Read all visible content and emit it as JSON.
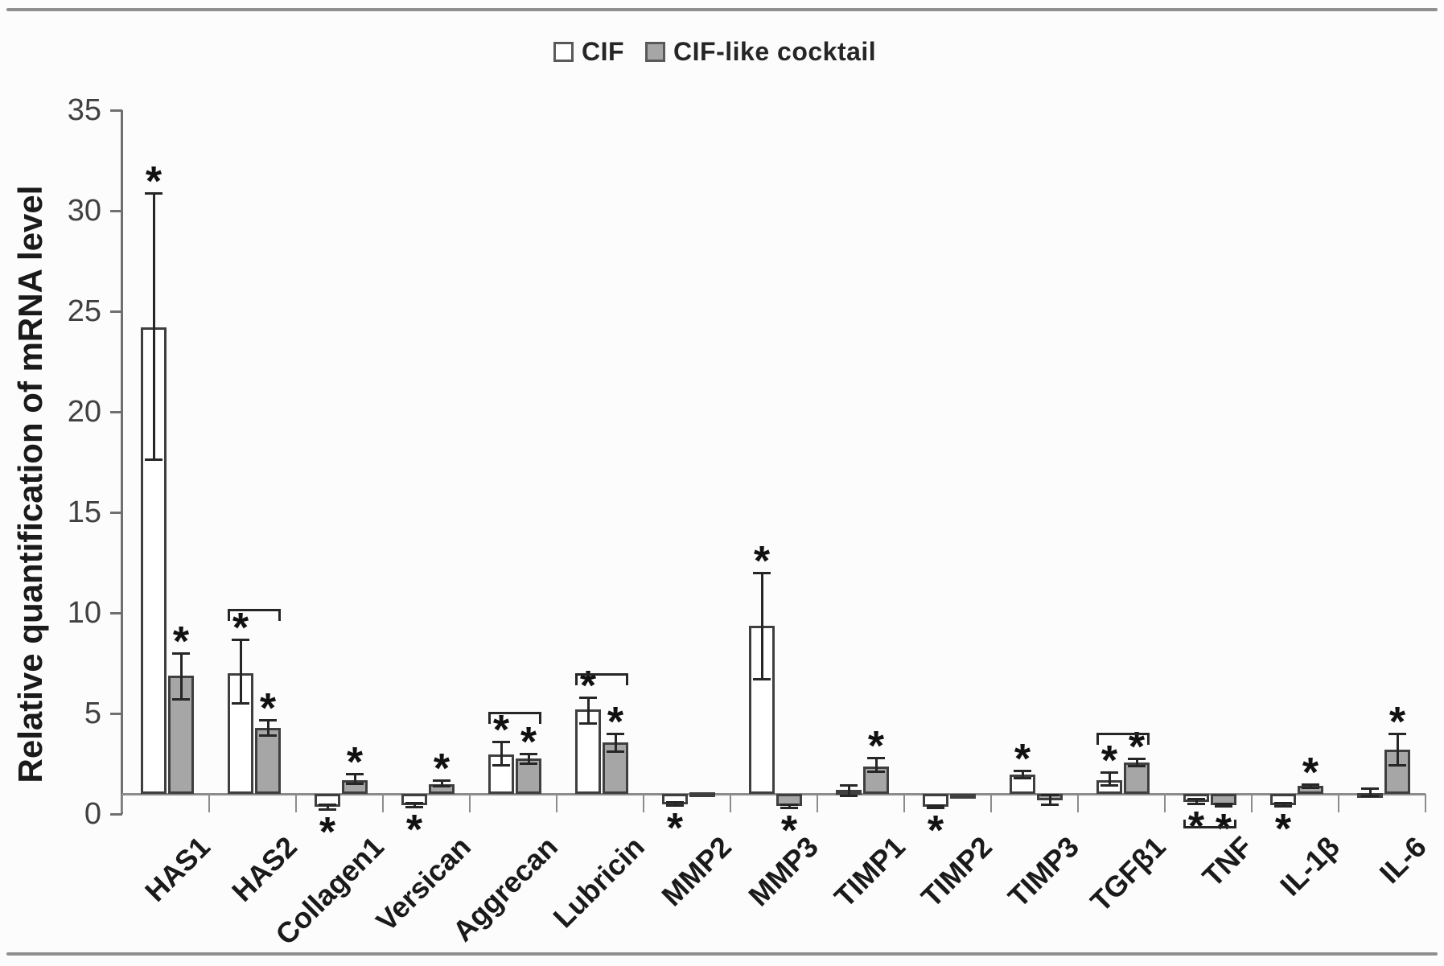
{
  "figure": {
    "significance_marker": "*",
    "colors": {
      "cif_fill": "#ffffff",
      "cocktail_fill": "#a6a6a6",
      "bar_border": "#3f3f3f",
      "axis": "#8c8c8c",
      "text": "#1a1a1a"
    }
  },
  "chart_data": {
    "type": "bar",
    "title": "",
    "xlabel": "",
    "ylabel": "Relative quantification of mRNA level",
    "ylim": [
      0,
      35
    ],
    "yticks": [
      0,
      5,
      10,
      15,
      20,
      25,
      30,
      35
    ],
    "baseline_value": 1,
    "grid": false,
    "legend_position": "top-center",
    "categories": [
      "HAS1",
      "HAS2",
      "Collagen1",
      "Versican",
      "Aggrecan",
      "Lubricin",
      "MMP2",
      "MMP3",
      "TIMP1",
      "TIMP2",
      "TIMP3",
      "TGFβ1",
      "TNF",
      "IL-1β",
      "IL-6"
    ],
    "series": [
      {
        "name": "CIF",
        "fill": "#ffffff",
        "values": [
          24.2,
          7.0,
          0.35,
          0.45,
          2.95,
          5.2,
          0.5,
          9.35,
          1.2,
          0.35,
          1.95,
          1.7,
          0.6,
          0.45,
          1.05
        ],
        "err_low": [
          17.6,
          5.5,
          0.2,
          0.32,
          2.4,
          4.5,
          0.4,
          6.7,
          0.9,
          0.28,
          1.75,
          1.4,
          0.48,
          0.35,
          0.88
        ],
        "err_high": [
          30.9,
          8.7,
          0.5,
          0.55,
          3.6,
          5.8,
          0.6,
          12.0,
          1.45,
          0.45,
          2.15,
          2.1,
          0.75,
          0.55,
          1.3
        ],
        "significant": [
          true,
          true,
          true,
          true,
          true,
          true,
          true,
          true,
          false,
          true,
          true,
          true,
          true,
          true,
          false
        ]
      },
      {
        "name": "CIF-like cocktail",
        "fill": "#a6a6a6",
        "values": [
          6.9,
          4.3,
          1.7,
          1.5,
          2.75,
          3.55,
          1.1,
          0.4,
          2.35,
          1.0,
          0.7,
          2.55,
          0.45,
          1.4,
          3.2
        ],
        "err_low": [
          5.7,
          3.9,
          1.5,
          1.35,
          2.5,
          3.1,
          null,
          0.3,
          2.1,
          null,
          0.45,
          2.35,
          0.38,
          1.3,
          2.4
        ],
        "err_high": [
          8.0,
          4.7,
          2.0,
          1.7,
          3.0,
          4.0,
          null,
          0.5,
          2.8,
          null,
          0.95,
          2.75,
          0.52,
          1.5,
          4.0
        ],
        "significant": [
          true,
          true,
          true,
          true,
          true,
          true,
          false,
          true,
          true,
          false,
          false,
          true,
          true,
          true,
          true
        ]
      }
    ],
    "pair_brackets": [
      {
        "category": "HAS2",
        "y": 10.2,
        "side": "top"
      },
      {
        "category": "Aggrecan",
        "y": 5.1,
        "side": "top"
      },
      {
        "category": "Lubricin",
        "y": 7.0,
        "side": "top"
      },
      {
        "category": "TGFβ1",
        "y": 4.05,
        "side": "top"
      },
      {
        "category": "TNF",
        "y": -0.72,
        "side": "bottom"
      }
    ]
  }
}
